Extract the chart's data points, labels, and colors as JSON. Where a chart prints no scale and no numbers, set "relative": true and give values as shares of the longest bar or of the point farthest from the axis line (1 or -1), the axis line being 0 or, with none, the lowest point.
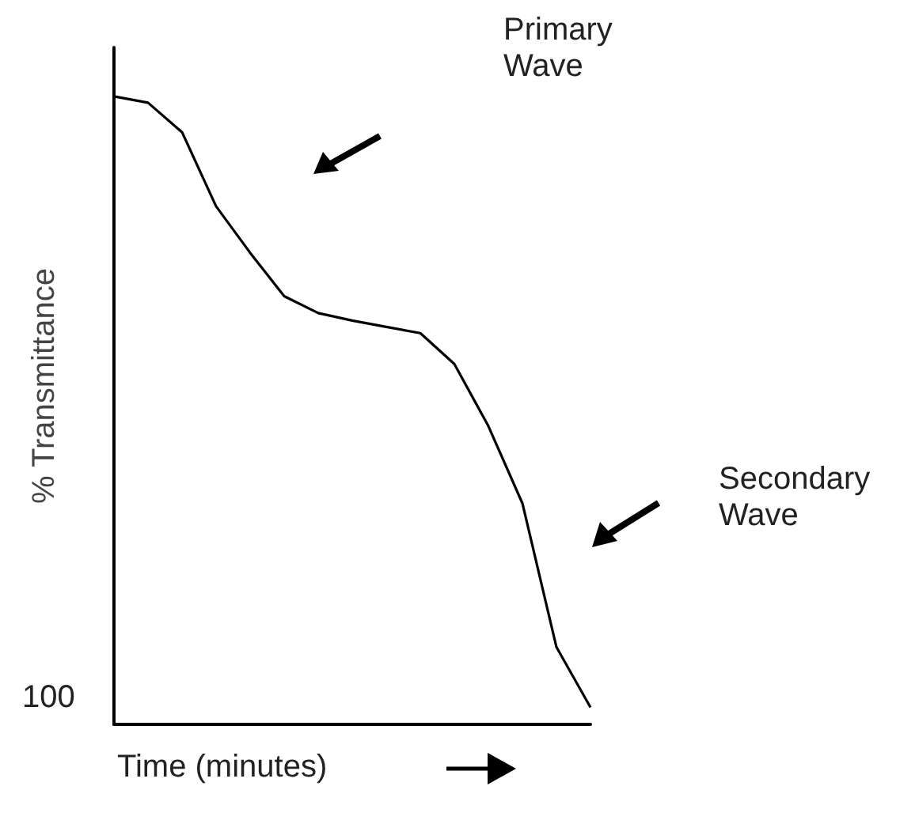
{
  "chart_data": {
    "type": "line",
    "relative": true,
    "xlabel": "Time (minutes)",
    "ylabel": "% Transmittance",
    "annotations": [
      "100",
      "Primary Wave",
      "Secondary Wave"
    ],
    "categories": [
      null,
      null,
      null,
      null,
      null,
      null,
      null,
      null,
      null,
      null,
      null,
      null,
      null,
      null,
      null
    ],
    "series": [
      {
        "color": "#000000",
        "values": [
          1.0,
          0.99,
          0.943,
          0.825,
          0.751,
          0.682,
          0.655,
          0.643,
          0.633,
          0.623,
          0.574,
          0.475,
          0.352,
          0.123,
          0.027
        ]
      }
    ],
    "marker": "none",
    "line_style": "solid"
  }
}
